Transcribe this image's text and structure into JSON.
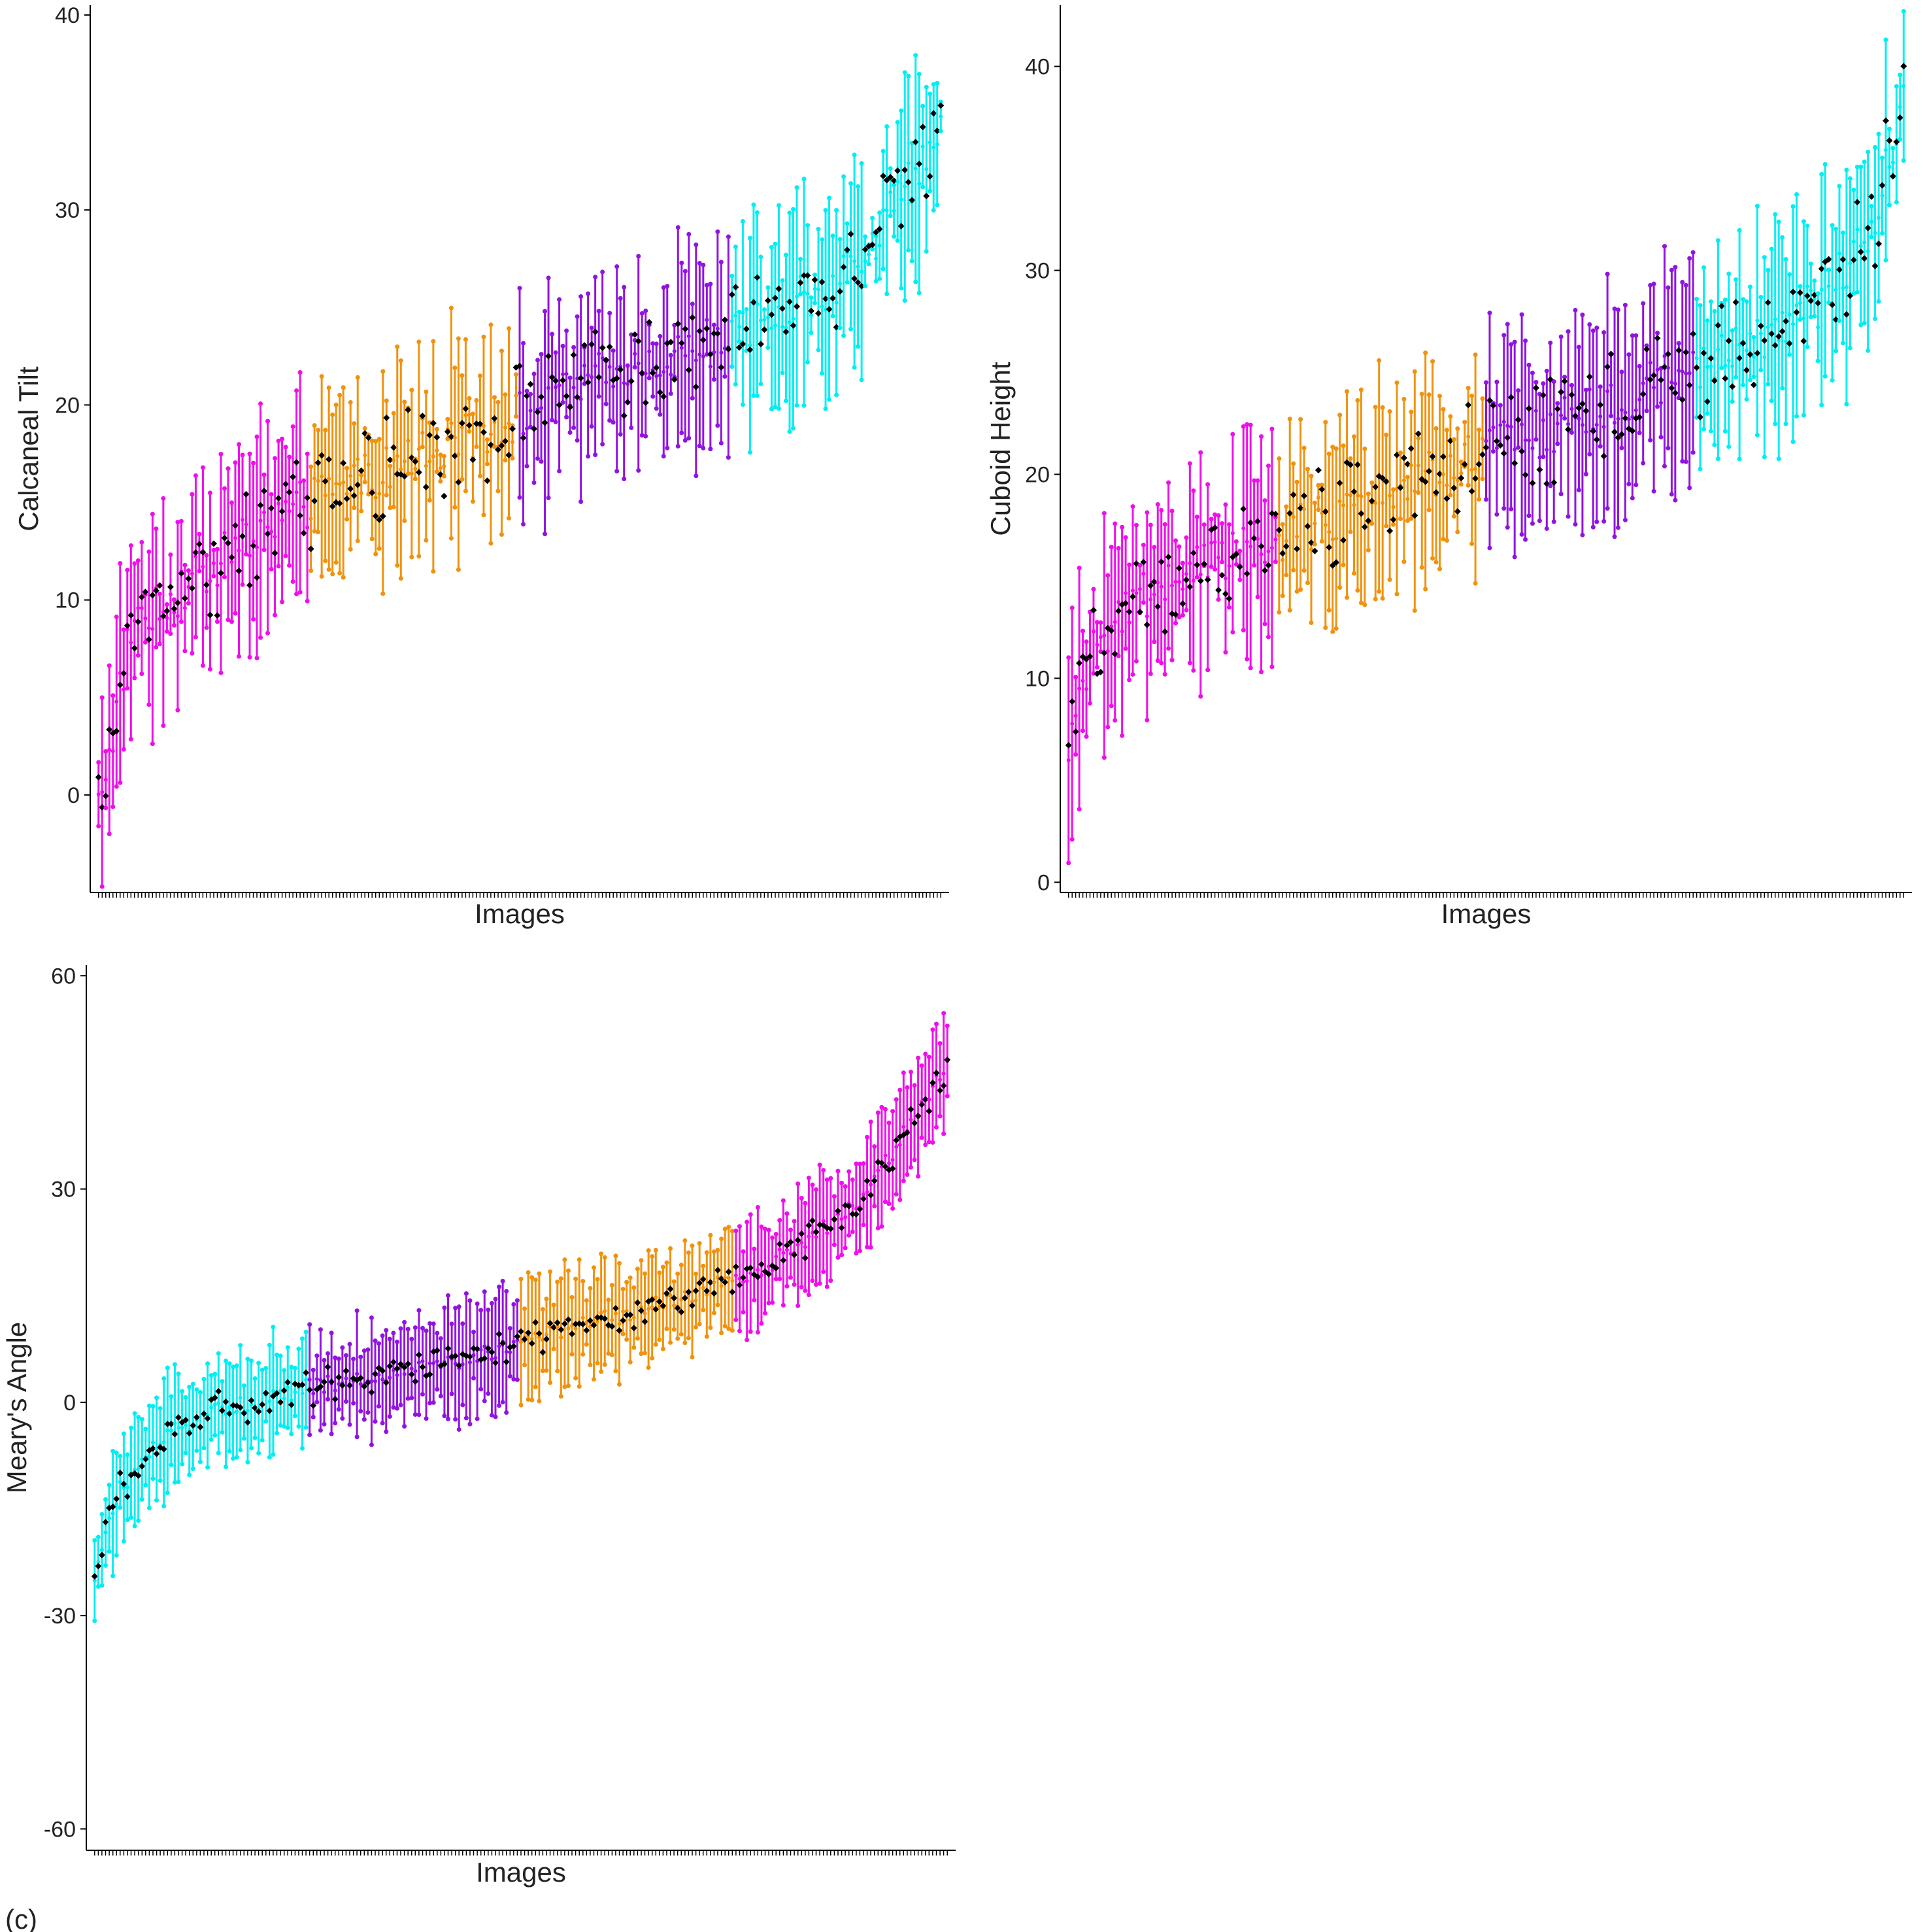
{
  "colors": {
    "cyan": "#00EEF2",
    "purple": "#9113E0",
    "orange": "#F0920E",
    "magenta": "#EE0FEB",
    "observed": "#000000"
  },
  "figure": {
    "caption": "(c)"
  },
  "chart_data": [
    {
      "type": "scatter",
      "title": "",
      "xlabel": "Images",
      "ylabel": "Calcaneal Tilt",
      "ylim": [
        -5,
        40.5
      ],
      "yticks": [
        0,
        10,
        20,
        30,
        40
      ],
      "grid": false,
      "legend": "none",
      "n_images": 235,
      "series_colors_order": [
        "magenta",
        "orange",
        "purple",
        "cyan"
      ],
      "trend": {
        "x": [
          0,
          0.02,
          0.04,
          0.1,
          0.2,
          0.3,
          0.45,
          0.6,
          0.75,
          0.9,
          0.96,
          1.0
        ],
        "y": [
          -0.5,
          4,
          9,
          10.5,
          14,
          16,
          18.5,
          21.5,
          23.5,
          27,
          31,
          35
        ]
      },
      "error_bar_halfwidth": [
        0.5,
        6
      ],
      "observed_marker": "black diamond per image"
    },
    {
      "type": "scatter",
      "title": "",
      "xlabel": "Images",
      "ylabel": "Cuboid Height",
      "ylim": [
        -0.5,
        43
      ],
      "yticks": [
        0,
        10,
        20,
        30,
        40
      ],
      "grid": false,
      "legend": "none",
      "n_images": 235,
      "series_colors_order": [
        "magenta",
        "orange",
        "purple",
        "cyan"
      ],
      "trend": {
        "x": [
          0,
          0.02,
          0.05,
          0.1,
          0.2,
          0.35,
          0.5,
          0.65,
          0.8,
          0.9,
          0.96,
          1.0
        ],
        "y": [
          7,
          10.5,
          12.5,
          14.5,
          16,
          18.5,
          21,
          23.5,
          26,
          28.5,
          32,
          38.5
        ]
      },
      "error_bar_halfwidth": [
        0.5,
        6
      ],
      "observed_marker": "black diamond per image"
    },
    {
      "type": "scatter",
      "title": "",
      "xlabel": "Images",
      "ylabel": "Meary's Angle",
      "ylim": [
        -63,
        61.5
      ],
      "yticks": [
        -60,
        -30,
        0,
        30,
        60
      ],
      "grid": false,
      "legend": "none",
      "n_images": 235,
      "series_colors_order": [
        "cyan",
        "purple",
        "orange",
        "magenta"
      ],
      "trend": {
        "x": [
          0,
          0.01,
          0.03,
          0.08,
          0.15,
          0.25,
          0.4,
          0.55,
          0.7,
          0.8,
          0.9,
          0.95,
          1.0
        ],
        "y": [
          -25,
          -20,
          -12,
          -5,
          -1,
          2,
          5,
          10,
          15,
          20,
          28,
          38,
          48
        ]
      },
      "error_bar_halfwidth": [
        3,
        9
      ],
      "observed_marker": "black diamond per image"
    }
  ]
}
